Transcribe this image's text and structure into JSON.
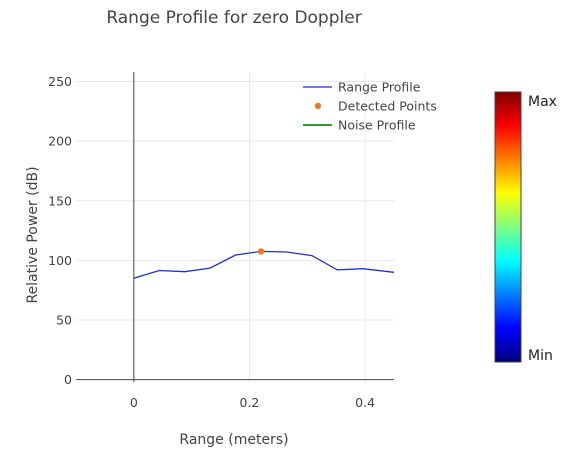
{
  "chart_data": {
    "type": "line",
    "title": "Range Profile for zero Doppler",
    "xlabel": "Range (meters)",
    "ylabel": "Relative Power (dB)",
    "xlim": [
      -0.1,
      0.45
    ],
    "ylim": [
      -2,
      258
    ],
    "x_ticks": [
      0,
      0.2,
      0.4
    ],
    "x_tick_labels": [
      "0",
      "0.2",
      "0.4"
    ],
    "y_ticks": [
      0,
      50,
      100,
      150,
      200,
      250
    ],
    "y_tick_labels": [
      "0",
      "50",
      "100",
      "150",
      "200",
      "250"
    ],
    "grid": true,
    "legend_position": "top-right",
    "series": [
      {
        "name": "Range Profile",
        "kind": "line",
        "color": "#1f2fcf",
        "x": [
          0,
          0.044,
          0.088,
          0.132,
          0.176,
          0.22,
          0.264,
          0.308,
          0.352,
          0.396,
          0.45
        ],
        "y": [
          85,
          91.5,
          90.5,
          93.5,
          104.5,
          107.5,
          107,
          104,
          92,
          93,
          90
        ]
      },
      {
        "name": "Detected Points",
        "kind": "marker",
        "color": "#f07820",
        "x": [
          0.22
        ],
        "y": [
          107.5
        ]
      },
      {
        "name": "Noise Profile",
        "kind": "line",
        "color": "#2ca02c",
        "x": [],
        "y": []
      }
    ],
    "colorbar": {
      "max_label": "Max",
      "min_label": "Min",
      "colors": [
        "#00007f",
        "#0000ff",
        "#007fff",
        "#00ffff",
        "#7fff7f",
        "#ffff00",
        "#ff7f00",
        "#ff0000",
        "#7f0000"
      ]
    }
  }
}
